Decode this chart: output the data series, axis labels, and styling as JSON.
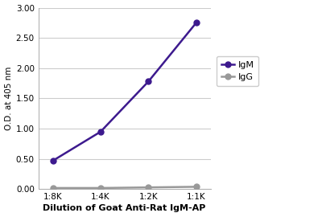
{
  "x_labels": [
    "1:8K",
    "1:4K",
    "1:2K",
    "1:1K"
  ],
  "x_values": [
    0,
    1,
    2,
    3
  ],
  "igm_values": [
    0.47,
    0.95,
    1.78,
    2.75
  ],
  "igg_values": [
    0.02,
    0.02,
    0.03,
    0.04
  ],
  "igm_color": "#3d1a8e",
  "igg_color": "#999999",
  "igm_label": "IgM",
  "igg_label": "IgG",
  "ylabel": "O.D. at 405 nm",
  "xlabel": "Dilution of Goat Anti-Rat IgM-AP",
  "ylim": [
    0.0,
    3.0
  ],
  "yticks": [
    0.0,
    0.5,
    1.0,
    1.5,
    2.0,
    2.5,
    3.0
  ],
  "bg_color": "#ffffff",
  "grid_color": "#cccccc",
  "line_width": 1.8,
  "marker": "o",
  "marker_size": 5
}
